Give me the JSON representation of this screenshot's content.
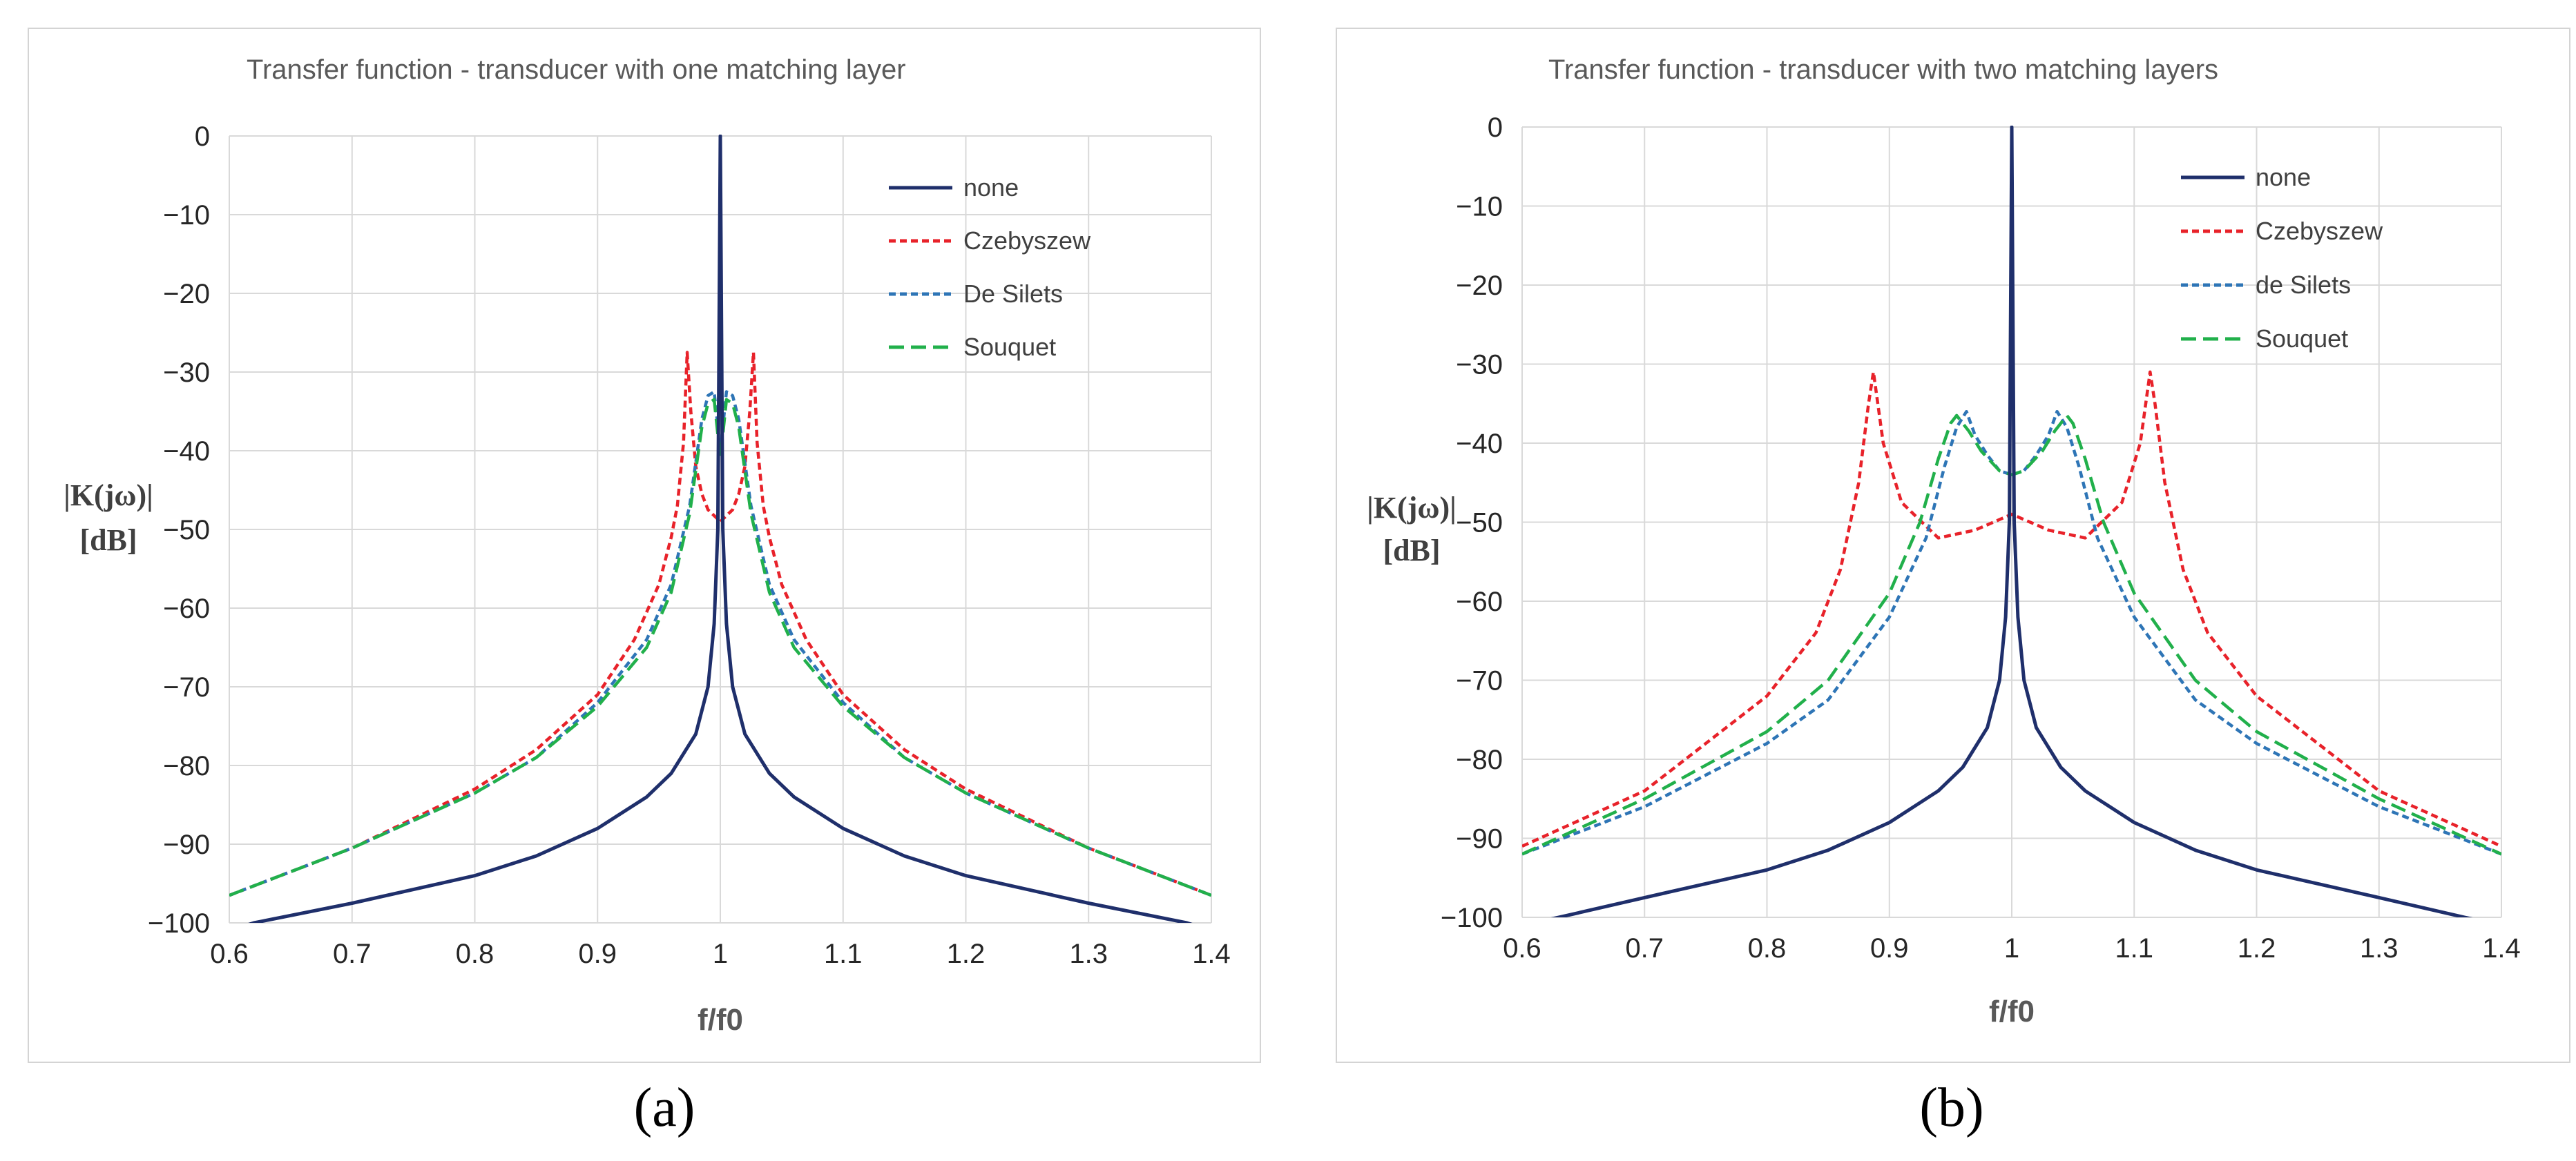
{
  "panel_a_caption": "(a)",
  "panel_b_caption": "(b)",
  "chart_data": [
    {
      "type": "line",
      "title": "Transfer function - transducer with one matching layer",
      "xlabel": "f/f0",
      "ylabel_line1": "|K(jω)|",
      "ylabel_line2": "[dB]",
      "xlim": [
        0.6,
        1.4
      ],
      "ylim": [
        -100,
        0
      ],
      "x_ticks": [
        "0.6",
        "0.7",
        "0.8",
        "0.9",
        "1",
        "1.1",
        "1.2",
        "1.3",
        "1.4"
      ],
      "y_ticks": [
        "0",
        "−10",
        "−20",
        "−30",
        "−40",
        "−50",
        "−60",
        "−70",
        "−80",
        "−90",
        "−100"
      ],
      "legend": [
        "none",
        "Czebyszew",
        "De Silets",
        "Souquet"
      ],
      "series": [
        {
          "name": "none",
          "color": "#1f2f6b",
          "dash": "",
          "x": [
            0.6,
            0.62,
            0.7,
            0.8,
            0.85,
            0.9,
            0.94,
            0.96,
            0.98,
            0.99,
            0.995,
            0.998,
            1.0,
            1.002,
            1.005,
            1.01,
            1.02,
            1.04,
            1.06,
            1.1,
            1.15,
            1.2,
            1.3,
            1.38,
            1.4
          ],
          "y": [
            -101,
            -100,
            -97.5,
            -94,
            -91.5,
            -88,
            -84,
            -81,
            -76,
            -70,
            -62,
            -50,
            0,
            -50,
            -62,
            -70,
            -76,
            -81,
            -84,
            -88,
            -91.5,
            -94,
            -97.5,
            -100,
            -101
          ]
        },
        {
          "name": "Czebyszew",
          "color": "#e8222a",
          "dash": "10 6",
          "x": [
            0.6,
            0.7,
            0.8,
            0.85,
            0.9,
            0.93,
            0.95,
            0.96,
            0.965,
            0.97,
            0.973,
            0.976,
            0.98,
            0.985,
            0.99,
            1.0,
            1.01,
            1.015,
            1.02,
            1.024,
            1.027,
            1.03,
            1.035,
            1.04,
            1.05,
            1.07,
            1.1,
            1.15,
            1.2,
            1.3,
            1.4
          ],
          "y": [
            -96.5,
            -90.5,
            -83,
            -78,
            -71,
            -64,
            -57,
            -51,
            -47,
            -39,
            -27.5,
            -35,
            -42,
            -45.5,
            -47.5,
            -49,
            -47.5,
            -45.5,
            -42,
            -35,
            -27.5,
            -39,
            -47,
            -51,
            -57,
            -64,
            -71,
            -78,
            -83,
            -90.5,
            -96.5
          ]
        },
        {
          "name": "De Silets",
          "color": "#2e75b6",
          "dash": "10 6",
          "x": [
            0.6,
            0.7,
            0.8,
            0.85,
            0.9,
            0.94,
            0.96,
            0.975,
            0.985,
            0.99,
            0.995,
            1.0,
            1.005,
            1.01,
            1.015,
            1.025,
            1.04,
            1.06,
            1.1,
            1.15,
            1.2,
            1.3,
            1.4
          ],
          "y": [
            -96.5,
            -90.5,
            -83.5,
            -79,
            -72,
            -64,
            -57,
            -47,
            -36,
            -33,
            -32.5,
            -40,
            -32.5,
            -33,
            -36,
            -47,
            -57,
            -64,
            -72,
            -79,
            -83.5,
            -90.5,
            -96.5
          ]
        },
        {
          "name": "Souquet",
          "color": "#21b04b",
          "dash": "22 10",
          "x": [
            0.6,
            0.7,
            0.8,
            0.85,
            0.9,
            0.94,
            0.96,
            0.975,
            0.985,
            0.99,
            0.995,
            1.0,
            1.005,
            1.01,
            1.015,
            1.025,
            1.04,
            1.06,
            1.1,
            1.15,
            1.2,
            1.3,
            1.4
          ],
          "y": [
            -96.5,
            -90.5,
            -83.5,
            -79,
            -72.5,
            -65,
            -58,
            -48,
            -37,
            -34,
            -33.5,
            -41,
            -33.5,
            -34,
            -37,
            -48,
            -58,
            -65,
            -72.5,
            -79,
            -83.5,
            -90.5,
            -96.5
          ]
        }
      ]
    },
    {
      "type": "line",
      "title": "Transfer function - transducer with two matching layers",
      "xlabel": "f/f0",
      "ylabel_line1": "|K(jω)|",
      "ylabel_line2": "[dB]",
      "xlim": [
        0.6,
        1.4
      ],
      "ylim": [
        -100,
        0
      ],
      "x_ticks": [
        "0.6",
        "0.7",
        "0.8",
        "0.9",
        "1",
        "1.1",
        "1.2",
        "1.3",
        "1.4"
      ],
      "y_ticks": [
        "0",
        "−10",
        "−20",
        "−30",
        "−40",
        "−50",
        "−60",
        "−70",
        "−80",
        "−90",
        "−100"
      ],
      "legend": [
        "none",
        "Czebyszew",
        "de Silets",
        "Souquet"
      ],
      "series": [
        {
          "name": "none",
          "color": "#1f2f6b",
          "dash": "",
          "x": [
            0.6,
            0.63,
            0.7,
            0.8,
            0.85,
            0.9,
            0.94,
            0.96,
            0.98,
            0.99,
            0.995,
            0.998,
            1.0,
            1.002,
            1.005,
            1.01,
            1.02,
            1.04,
            1.06,
            1.1,
            1.15,
            1.2,
            1.3,
            1.37,
            1.4
          ],
          "y": [
            -101,
            -100,
            -97.5,
            -94,
            -91.5,
            -88,
            -84,
            -81,
            -76,
            -70,
            -62,
            -50,
            0,
            -50,
            -62,
            -70,
            -76,
            -81,
            -84,
            -88,
            -91.5,
            -94,
            -97.5,
            -100,
            -101
          ]
        },
        {
          "name": "Czebyszew",
          "color": "#e8222a",
          "dash": "10 6",
          "x": [
            0.6,
            0.7,
            0.8,
            0.84,
            0.86,
            0.875,
            0.883,
            0.887,
            0.895,
            0.91,
            0.94,
            0.97,
            1.0,
            1.03,
            1.06,
            1.09,
            1.105,
            1.113,
            1.117,
            1.125,
            1.14,
            1.16,
            1.2,
            1.3,
            1.4
          ],
          "y": [
            -91,
            -84,
            -72,
            -64,
            -56,
            -45,
            -35,
            -31,
            -40,
            -47.5,
            -52,
            -51,
            -49,
            -51,
            -52,
            -47.5,
            -40,
            -31,
            -35,
            -45,
            -56,
            -64,
            -72,
            -84,
            -91
          ]
        },
        {
          "name": "de Silets",
          "color": "#2e75b6",
          "dash": "10 6",
          "x": [
            0.6,
            0.7,
            0.8,
            0.85,
            0.9,
            0.93,
            0.945,
            0.955,
            0.963,
            0.97,
            0.98,
            0.99,
            1.0,
            1.01,
            1.02,
            1.03,
            1.037,
            1.045,
            1.055,
            1.07,
            1.1,
            1.15,
            1.2,
            1.3,
            1.4
          ],
          "y": [
            -92,
            -86,
            -78,
            -72.5,
            -62,
            -52,
            -43,
            -38,
            -36,
            -39,
            -41.5,
            -43.5,
            -44,
            -43.5,
            -41.5,
            -39,
            -36,
            -38,
            -43,
            -52,
            -62,
            -72.5,
            -78,
            -86,
            -92
          ]
        },
        {
          "name": "Souquet",
          "color": "#21b04b",
          "dash": "22 10",
          "x": [
            0.6,
            0.7,
            0.8,
            0.85,
            0.9,
            0.925,
            0.94,
            0.95,
            0.955,
            0.965,
            0.975,
            0.99,
            1.0,
            1.01,
            1.025,
            1.035,
            1.045,
            1.05,
            1.06,
            1.075,
            1.1,
            1.15,
            1.2,
            1.3,
            1.4
          ],
          "y": [
            -92,
            -85,
            -76.5,
            -70,
            -59,
            -50,
            -42,
            -37.5,
            -36.5,
            -38.5,
            -41,
            -43.5,
            -44,
            -43.5,
            -41,
            -38.5,
            -36.5,
            -37.5,
            -42,
            -50,
            -59,
            -70,
            -76.5,
            -85,
            -92
          ]
        }
      ]
    }
  ]
}
